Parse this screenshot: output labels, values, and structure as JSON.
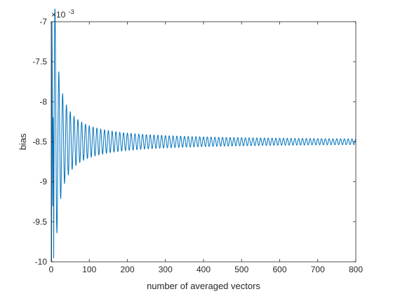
{
  "chart_data": {
    "type": "line",
    "title": "",
    "xlabel": "number of averaged vectors",
    "ylabel": "bias",
    "xlim": [
      0,
      800
    ],
    "ylim": [
      -0.01,
      -0.007
    ],
    "xticks": [
      0,
      100,
      200,
      300,
      400,
      500,
      600,
      700,
      800
    ],
    "xtick_labels": [
      "0",
      "100",
      "200",
      "300",
      "400",
      "500",
      "600",
      "700",
      "800"
    ],
    "yticks": [
      -0.01,
      -0.0095,
      -0.009,
      -0.0085,
      -0.008,
      -0.0075,
      -0.007
    ],
    "ytick_labels": [
      "-10",
      "-9.5",
      "-9",
      "-8.5",
      "-8",
      "-7.5",
      "-7"
    ],
    "y_exponent_label": "×10",
    "y_exponent_power": "-3",
    "grid": false,
    "box": true,
    "line_color": "#0072BD",
    "series": [
      {
        "name": "",
        "description": "damped oscillation converging to about -8.5e-3",
        "x": [
          1,
          2,
          3,
          4,
          5,
          6,
          8,
          10,
          12,
          15,
          18,
          20,
          22,
          25,
          27,
          30,
          33,
          36,
          40,
          45,
          50,
          60,
          70,
          80,
          100,
          120,
          150,
          200,
          250,
          300,
          400,
          500,
          600,
          700,
          800
        ],
        "y": [
          -0.01,
          -0.007,
          -0.0079,
          -0.0093,
          -0.0082,
          -0.0088,
          -0.0086,
          -0.0081,
          -0.0087,
          -0.0085,
          -0.0086,
          -0.0079,
          -0.0087,
          -0.0083,
          -0.0086,
          -0.0084,
          -0.0086,
          -0.0084,
          -0.00858,
          -0.00842,
          -0.00857,
          -0.00845,
          -0.00855,
          -0.00846,
          -0.00854,
          -0.00847,
          -0.00853,
          -0.00848,
          -0.00852,
          -0.00848,
          -0.00851,
          -0.00849,
          -0.00851,
          -0.00849,
          -0.0085
        ],
        "oscillation_period": 10,
        "asymptote": -0.0085
      }
    ]
  }
}
